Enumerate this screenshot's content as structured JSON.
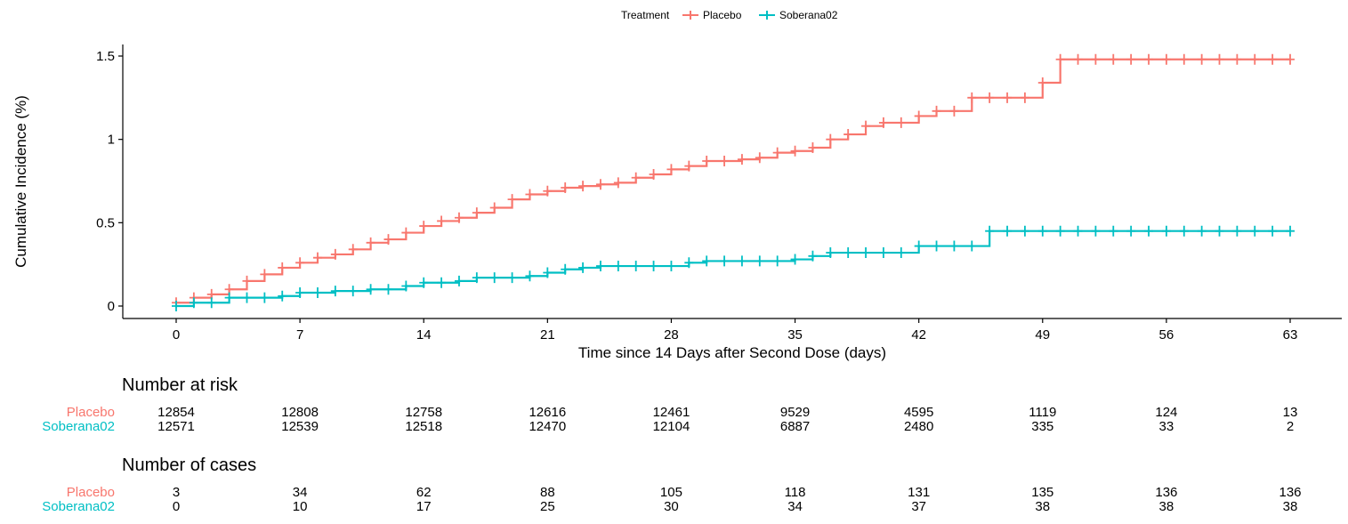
{
  "chart_data": {
    "type": "line",
    "subtype": "step",
    "xlabel": "Time since 14 Days after Second Dose (days)",
    "ylabel": "Cumulative Incidence (%)",
    "xlim": [
      -2,
      66
    ],
    "ylim": [
      -0.05,
      1.57
    ],
    "xticks": [
      0,
      7,
      14,
      21,
      28,
      35,
      42,
      49,
      56,
      63
    ],
    "xtick_labels": [
      "0",
      "7",
      "14",
      "21",
      "28",
      "35",
      "42",
      "49",
      "56",
      "63"
    ],
    "yticks": [
      0,
      0.5,
      1,
      1.5
    ],
    "ytick_labels": [
      "0",
      "0.5",
      "1",
      "1.5"
    ],
    "grid": false,
    "legend": {
      "title": "Treatment",
      "placement": "top"
    },
    "series": [
      {
        "name": "Placebo",
        "color": "#F8766D",
        "steps": [
          [
            0,
            0.02
          ],
          [
            1,
            0.05
          ],
          [
            2,
            0.07
          ],
          [
            3,
            0.1
          ],
          [
            4,
            0.15
          ],
          [
            5,
            0.19
          ],
          [
            6,
            0.23
          ],
          [
            7,
            0.26
          ],
          [
            8,
            0.29
          ],
          [
            9,
            0.31
          ],
          [
            10,
            0.34
          ],
          [
            11,
            0.38
          ],
          [
            12,
            0.4
          ],
          [
            13,
            0.44
          ],
          [
            14,
            0.48
          ],
          [
            15,
            0.51
          ],
          [
            16,
            0.53
          ],
          [
            17,
            0.56
          ],
          [
            18,
            0.59
          ],
          [
            19,
            0.64
          ],
          [
            20,
            0.67
          ],
          [
            21,
            0.69
          ],
          [
            22,
            0.71
          ],
          [
            23,
            0.72
          ],
          [
            24,
            0.73
          ],
          [
            25,
            0.74
          ],
          [
            26,
            0.77
          ],
          [
            27,
            0.79
          ],
          [
            28,
            0.82
          ],
          [
            29,
            0.84
          ],
          [
            30,
            0.87
          ],
          [
            31,
            0.87
          ],
          [
            32,
            0.88
          ],
          [
            33,
            0.89
          ],
          [
            34,
            0.92
          ],
          [
            35,
            0.93
          ],
          [
            36,
            0.95
          ],
          [
            37,
            1.0
          ],
          [
            38,
            1.03
          ],
          [
            39,
            1.08
          ],
          [
            40,
            1.1
          ],
          [
            41,
            1.1
          ],
          [
            42,
            1.14
          ],
          [
            43,
            1.17
          ],
          [
            44,
            1.17
          ],
          [
            45,
            1.25
          ],
          [
            46,
            1.25
          ],
          [
            47,
            1.25
          ],
          [
            48,
            1.25
          ],
          [
            49,
            1.34
          ],
          [
            50,
            1.48
          ],
          [
            63,
            1.48
          ]
        ],
        "censor_x": [
          0,
          1,
          2,
          3,
          4,
          5,
          6,
          7,
          8,
          9,
          10,
          11,
          12,
          13,
          14,
          15,
          16,
          17,
          18,
          19,
          20,
          21,
          22,
          23,
          24,
          25,
          26,
          27,
          28,
          29,
          30,
          31,
          32,
          33,
          34,
          35,
          36,
          37,
          38,
          39,
          40,
          41,
          42,
          43,
          44,
          45,
          46,
          47,
          48,
          49,
          50,
          51,
          52,
          53,
          54,
          55,
          56,
          57,
          58,
          59,
          60,
          61,
          62,
          63
        ]
      },
      {
        "name": "Soberana02",
        "color": "#00BFC4",
        "steps": [
          [
            0,
            0.0
          ],
          [
            1,
            0.02
          ],
          [
            3,
            0.05
          ],
          [
            6,
            0.06
          ],
          [
            7,
            0.08
          ],
          [
            9,
            0.09
          ],
          [
            11,
            0.1
          ],
          [
            13,
            0.12
          ],
          [
            14,
            0.14
          ],
          [
            16,
            0.15
          ],
          [
            17,
            0.17
          ],
          [
            20,
            0.18
          ],
          [
            21,
            0.2
          ],
          [
            22,
            0.22
          ],
          [
            23,
            0.23
          ],
          [
            24,
            0.24
          ],
          [
            29,
            0.26
          ],
          [
            30,
            0.27
          ],
          [
            35,
            0.28
          ],
          [
            36,
            0.3
          ],
          [
            37,
            0.32
          ],
          [
            42,
            0.36
          ],
          [
            46,
            0.45
          ],
          [
            63,
            0.45
          ]
        ],
        "censor_x": [
          0,
          1,
          2,
          3,
          4,
          5,
          6,
          7,
          8,
          9,
          10,
          11,
          12,
          13,
          14,
          15,
          16,
          17,
          18,
          19,
          20,
          21,
          22,
          23,
          24,
          25,
          26,
          27,
          28,
          29,
          30,
          31,
          32,
          33,
          34,
          35,
          36,
          37,
          38,
          39,
          40,
          41,
          42,
          43,
          44,
          45,
          46,
          47,
          48,
          49,
          50,
          51,
          52,
          53,
          54,
          55,
          56,
          57,
          58,
          59,
          60,
          61,
          62,
          63
        ]
      }
    ],
    "risk_table": {
      "title": "Number at risk",
      "times": [
        0,
        7,
        14,
        21,
        28,
        35,
        42,
        49,
        56,
        63
      ],
      "rows": [
        {
          "name": "Placebo",
          "color": "#F8766D",
          "values": [
            "12854",
            "12808",
            "12758",
            "12616",
            "12461",
            "9529",
            "4595",
            "1119",
            "124",
            "13"
          ]
        },
        {
          "name": "Soberana02",
          "color": "#00BFC4",
          "values": [
            "12571",
            "12539",
            "12518",
            "12470",
            "12104",
            "6887",
            "2480",
            "335",
            "33",
            "2"
          ]
        }
      ]
    },
    "cases_table": {
      "title": "Number of cases",
      "times": [
        0,
        7,
        14,
        21,
        28,
        35,
        42,
        49,
        56,
        63
      ],
      "rows": [
        {
          "name": "Placebo",
          "color": "#F8766D",
          "values": [
            "3",
            "34",
            "62",
            "88",
            "105",
            "118",
            "131",
            "135",
            "136",
            "136"
          ]
        },
        {
          "name": "Soberana02",
          "color": "#00BFC4",
          "values": [
            "0",
            "10",
            "17",
            "25",
            "30",
            "34",
            "37",
            "38",
            "38",
            "38"
          ]
        }
      ]
    }
  }
}
